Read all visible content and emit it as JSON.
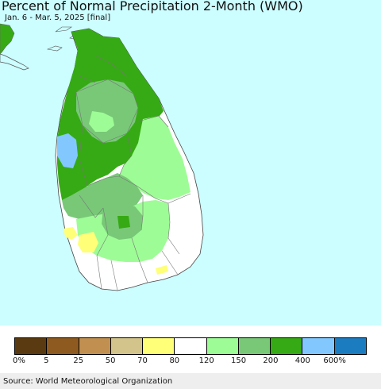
{
  "title": "Percent of Normal Precipitation 2-Month (WMO)",
  "subtitle": "Jan. 6 - Mar. 5, 2025 [final]",
  "colors": {
    "ocean": "#ccfdff",
    "land_white": "#ffffff",
    "border": "#777777"
  },
  "legend": {
    "colors": [
      "#5a3a10",
      "#8e5a20",
      "#c19050",
      "#d2c48a",
      "#ffff78",
      "#ffffff",
      "#9efc96",
      "#78c878",
      "#36aa14",
      "#82c8ff",
      "#1c7cc0"
    ],
    "labels": [
      "0%",
      "5",
      "25",
      "50",
      "70",
      "80",
      "120",
      "150",
      "200",
      "400",
      "600%"
    ]
  },
  "source": "Source: World Meteorological Organization"
}
